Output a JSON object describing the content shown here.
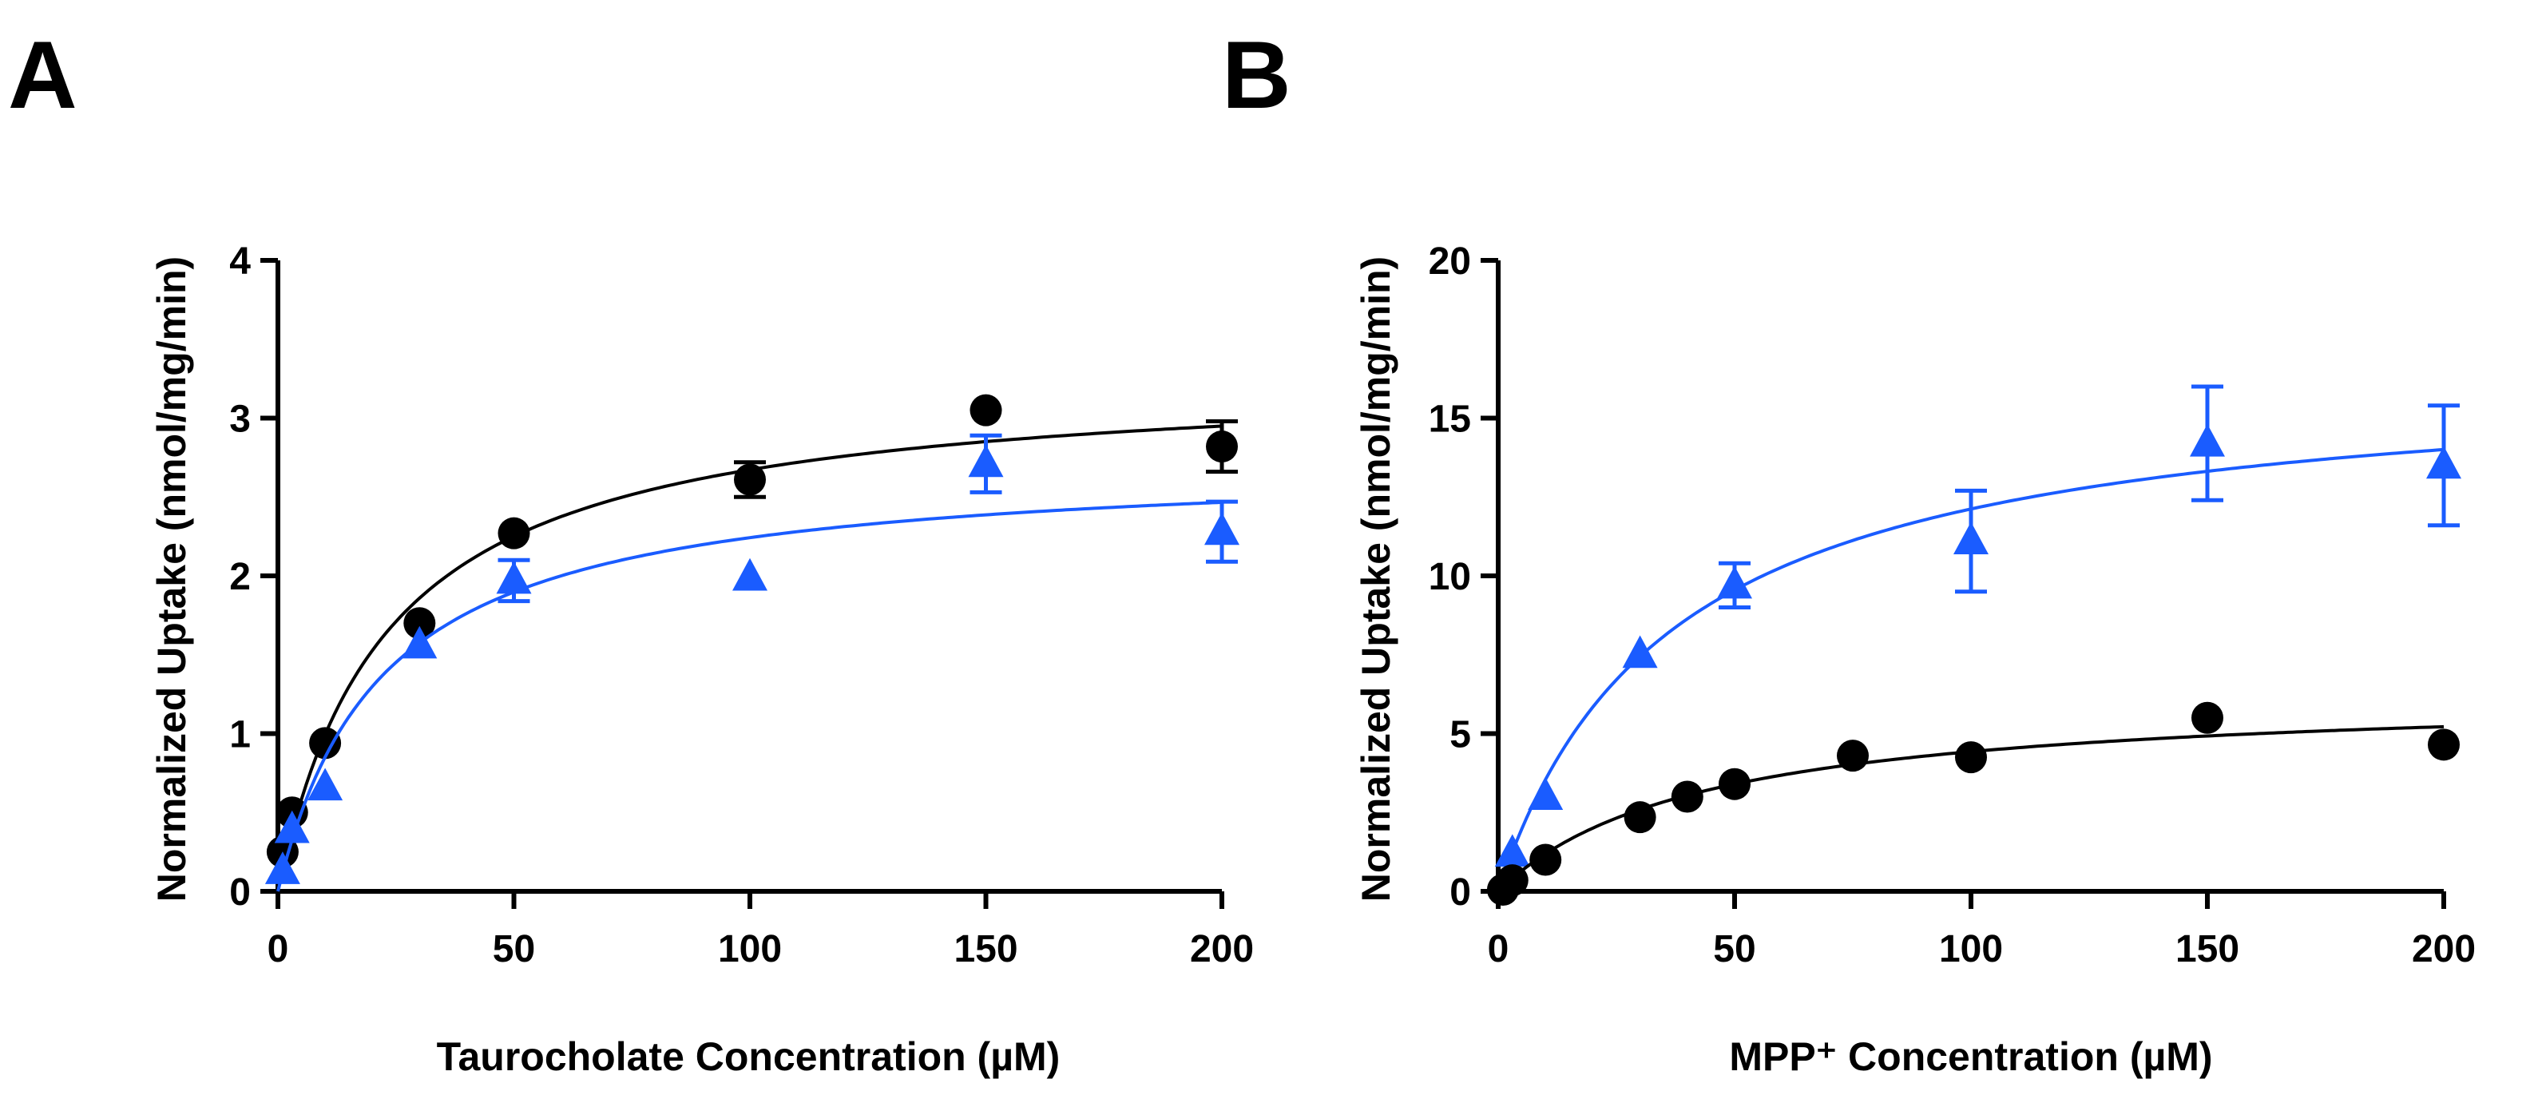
{
  "colors": {
    "black_series": "#000000",
    "blue_series": "#1a5cff"
  },
  "chart_data": [
    {
      "panel_label": "A",
      "type": "scatter",
      "xlabel": "Taurocholate Concentration (µM)",
      "ylabel": "Normalized Uptake (nmol/mg/min)",
      "xlim": [
        0,
        200
      ],
      "ylim": [
        0,
        4
      ],
      "xticks": [
        "0",
        "50",
        "100",
        "150",
        "200"
      ],
      "yticks": [
        "0",
        "1",
        "2",
        "3",
        "4"
      ],
      "grid": false,
      "series": [
        {
          "name": "circle",
          "color": "#000000",
          "marker": "circle",
          "x": [
            1,
            3,
            10,
            30,
            50,
            100,
            150,
            200
          ],
          "y": [
            0.25,
            0.5,
            0.94,
            1.7,
            2.27,
            2.61,
            3.05,
            2.82
          ],
          "err": [
            0,
            0,
            0,
            0,
            0,
            0.11,
            0,
            0.16
          ],
          "fit": {
            "model": "michaelis-menten",
            "vmax": 3.29,
            "km": 23.1
          }
        },
        {
          "name": "triangle",
          "color": "#1a5cff",
          "marker": "triangle",
          "x": [
            1,
            3,
            10,
            30,
            50,
            100,
            150,
            200
          ],
          "y": [
            0.13,
            0.39,
            0.66,
            1.56,
            1.97,
            1.99,
            2.71,
            2.28
          ],
          "err": [
            0,
            0,
            0,
            0,
            0.13,
            0,
            0.18,
            0.19
          ],
          "fit": {
            "model": "michaelis-menten",
            "vmax": 2.74,
            "km": 22.2
          }
        }
      ]
    },
    {
      "panel_label": "B",
      "type": "scatter",
      "xlabel": "MPP⁺ Concentration (µM)",
      "ylabel": "Normalized Uptake (nmol/mg/min)",
      "xlim": [
        0,
        200
      ],
      "ylim": [
        0,
        20
      ],
      "xticks": [
        "0",
        "50",
        "100",
        "150",
        "200"
      ],
      "yticks": [
        "0",
        "5",
        "10",
        "15",
        "20"
      ],
      "grid": false,
      "series": [
        {
          "name": "triangle",
          "color": "#1a5cff",
          "marker": "triangle",
          "x": [
            3,
            10,
            30,
            50,
            100,
            150,
            200
          ],
          "y": [
            1.2,
            3.0,
            7.5,
            9.7,
            11.1,
            14.2,
            13.5
          ],
          "err": [
            0,
            0,
            0,
            0.7,
            1.6,
            1.8,
            1.9
          ],
          "fit": {
            "model": "michaelis-menten",
            "vmax": 16.58,
            "km": 36.8
          }
        },
        {
          "name": "circle",
          "color": "#000000",
          "marker": "circle",
          "x": [
            1,
            3,
            10,
            30,
            40,
            50,
            75,
            100,
            150,
            200
          ],
          "y": [
            0.05,
            0.35,
            1.0,
            2.35,
            3.0,
            3.4,
            4.3,
            4.25,
            5.5,
            4.65
          ],
          "err": [
            0,
            0,
            0,
            0,
            0,
            0,
            0,
            0,
            0,
            0
          ],
          "fit": {
            "model": "michaelis-menten",
            "vmax": 6.35,
            "km": 43.4
          }
        }
      ]
    }
  ]
}
